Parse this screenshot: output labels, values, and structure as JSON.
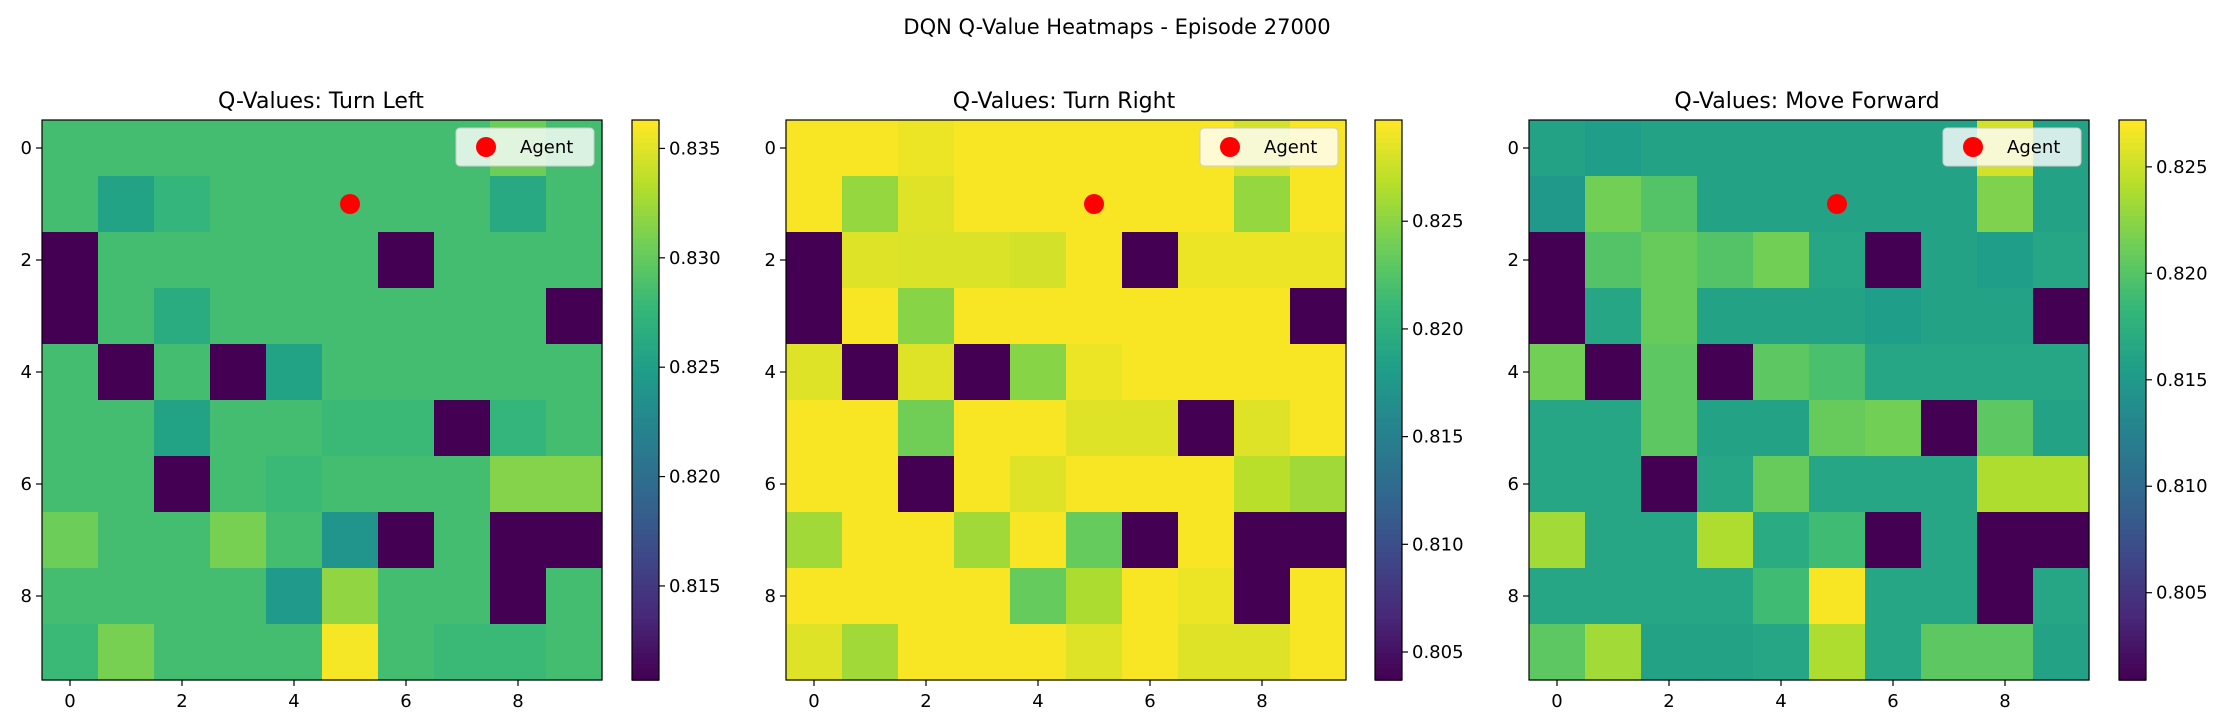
{
  "figure": {
    "suptitle": "DQN Q-Value Heatmaps - Episode 27000"
  },
  "legend_label": "Agent",
  "colors": {
    "agent_marker": "#ff0000",
    "colormap": "viridis",
    "obstacle": "#440154"
  },
  "chart_data": [
    {
      "type": "heatmap",
      "title": "Q-Values: Turn Left",
      "xlabel": "",
      "ylabel": "",
      "x_ticks": [
        "0",
        "2",
        "4",
        "6",
        "8"
      ],
      "y_ticks": [
        "0",
        "2",
        "4",
        "6",
        "8"
      ],
      "colorbar_ticks": [
        "0.815",
        "0.820",
        "0.825",
        "0.830",
        "0.835"
      ],
      "colorbar_range": [
        0.8107,
        0.8363
      ],
      "agent": {
        "row": 1,
        "col": 5
      },
      "legend_position": "upper-right",
      "values": [
        [
          0.8285,
          0.8285,
          0.8285,
          0.8285,
          0.8285,
          0.8285,
          0.8285,
          0.8285,
          0.8305,
          0.8285
        ],
        [
          0.8285,
          0.8255,
          0.8275,
          0.8285,
          0.8285,
          0.8285,
          0.8285,
          0.8285,
          0.8262,
          0.8285
        ],
        [
          0.8107,
          0.8285,
          0.8285,
          0.8285,
          0.8285,
          0.8285,
          0.8107,
          0.8285,
          0.8285,
          0.8285
        ],
        [
          0.8107,
          0.8285,
          0.8265,
          0.8285,
          0.8285,
          0.8285,
          0.8285,
          0.8285,
          0.8285,
          0.8107
        ],
        [
          0.8285,
          0.8107,
          0.8285,
          0.8107,
          0.8255,
          0.8285,
          0.8285,
          0.8285,
          0.8285,
          0.8285
        ],
        [
          0.8285,
          0.8285,
          0.8255,
          0.8285,
          0.8285,
          0.828,
          0.828,
          0.8107,
          0.8275,
          0.8285
        ],
        [
          0.8285,
          0.8285,
          0.8107,
          0.8285,
          0.828,
          0.8285,
          0.8285,
          0.8285,
          0.8315,
          0.8315
        ],
        [
          0.8305,
          0.8285,
          0.8285,
          0.831,
          0.8285,
          0.824,
          0.8107,
          0.8285,
          0.8107,
          0.8107
        ],
        [
          0.8285,
          0.8285,
          0.8285,
          0.8285,
          0.8245,
          0.832,
          0.8285,
          0.8285,
          0.8107,
          0.8285
        ],
        [
          0.828,
          0.831,
          0.8285,
          0.8285,
          0.8285,
          0.836,
          0.8285,
          0.828,
          0.828,
          0.8285
        ]
      ]
    },
    {
      "type": "heatmap",
      "title": "Q-Values: Turn Right",
      "xlabel": "",
      "ylabel": "",
      "x_ticks": [
        "0",
        "2",
        "4",
        "6",
        "8"
      ],
      "y_ticks": [
        "0",
        "2",
        "4",
        "6",
        "8"
      ],
      "colorbar_ticks": [
        "0.805",
        "0.810",
        "0.815",
        "0.820",
        "0.825"
      ],
      "colorbar_range": [
        0.8037,
        0.8297
      ],
      "agent": {
        "row": 1,
        "col": 5
      },
      "legend_position": "upper-right",
      "values": [
        [
          0.8295,
          0.8295,
          0.829,
          0.8295,
          0.8295,
          0.8295,
          0.8295,
          0.8295,
          0.828,
          0.8295
        ],
        [
          0.8295,
          0.8255,
          0.8285,
          0.8295,
          0.8295,
          0.8295,
          0.8295,
          0.8295,
          0.8255,
          0.8295
        ],
        [
          0.8037,
          0.8285,
          0.8283,
          0.8283,
          0.828,
          0.8295,
          0.8037,
          0.829,
          0.829,
          0.829
        ],
        [
          0.8037,
          0.8295,
          0.825,
          0.8295,
          0.8295,
          0.8295,
          0.8295,
          0.8295,
          0.8295,
          0.8037
        ],
        [
          0.8285,
          0.8037,
          0.8285,
          0.8037,
          0.825,
          0.829,
          0.8295,
          0.8295,
          0.8295,
          0.8295
        ],
        [
          0.8295,
          0.8295,
          0.824,
          0.8295,
          0.8295,
          0.8285,
          0.8285,
          0.8037,
          0.8285,
          0.8295
        ],
        [
          0.8295,
          0.8295,
          0.8037,
          0.8295,
          0.8285,
          0.8295,
          0.8295,
          0.8295,
          0.827,
          0.826
        ],
        [
          0.826,
          0.8295,
          0.8295,
          0.826,
          0.8295,
          0.8235,
          0.8037,
          0.8295,
          0.8037,
          0.8037
        ],
        [
          0.8295,
          0.8295,
          0.8295,
          0.8295,
          0.8235,
          0.8265,
          0.8295,
          0.829,
          0.8037,
          0.8295
        ],
        [
          0.8285,
          0.826,
          0.8295,
          0.8295,
          0.8295,
          0.8285,
          0.8295,
          0.8285,
          0.8285,
          0.8295
        ]
      ]
    },
    {
      "type": "heatmap",
      "title": "Q-Values: Move Forward",
      "xlabel": "",
      "ylabel": "",
      "x_ticks": [
        "0",
        "2",
        "4",
        "6",
        "8"
      ],
      "y_ticks": [
        "0",
        "2",
        "4",
        "6",
        "8"
      ],
      "colorbar_ticks": [
        "0.805",
        "0.810",
        "0.815",
        "0.820",
        "0.825"
      ],
      "colorbar_range": [
        0.8009,
        0.8272
      ],
      "agent": {
        "row": 1,
        "col": 5
      },
      "legend_position": "upper-right",
      "values": [
        [
          0.816,
          0.8155,
          0.816,
          0.816,
          0.816,
          0.816,
          0.816,
          0.816,
          0.8255,
          0.816
        ],
        [
          0.815,
          0.8215,
          0.82,
          0.816,
          0.816,
          0.816,
          0.816,
          0.816,
          0.822,
          0.816
        ],
        [
          0.8009,
          0.82,
          0.821,
          0.82,
          0.8215,
          0.8165,
          0.8009,
          0.816,
          0.8155,
          0.8165
        ],
        [
          0.8009,
          0.8165,
          0.821,
          0.816,
          0.816,
          0.816,
          0.8155,
          0.816,
          0.816,
          0.8009
        ],
        [
          0.8215,
          0.8009,
          0.8205,
          0.8009,
          0.8205,
          0.8195,
          0.8165,
          0.8165,
          0.8165,
          0.8165
        ],
        [
          0.8165,
          0.8165,
          0.8205,
          0.816,
          0.816,
          0.821,
          0.8215,
          0.8009,
          0.8205,
          0.816
        ],
        [
          0.8165,
          0.8165,
          0.8009,
          0.8165,
          0.821,
          0.8165,
          0.8165,
          0.8165,
          0.824,
          0.824
        ],
        [
          0.8235,
          0.8165,
          0.8165,
          0.824,
          0.817,
          0.819,
          0.8009,
          0.8165,
          0.8009,
          0.8009
        ],
        [
          0.8165,
          0.8165,
          0.8165,
          0.8165,
          0.819,
          0.827,
          0.8165,
          0.8165,
          0.8009,
          0.8165
        ],
        [
          0.8205,
          0.8235,
          0.816,
          0.816,
          0.8165,
          0.824,
          0.8165,
          0.8205,
          0.8205,
          0.816
        ]
      ]
    }
  ]
}
